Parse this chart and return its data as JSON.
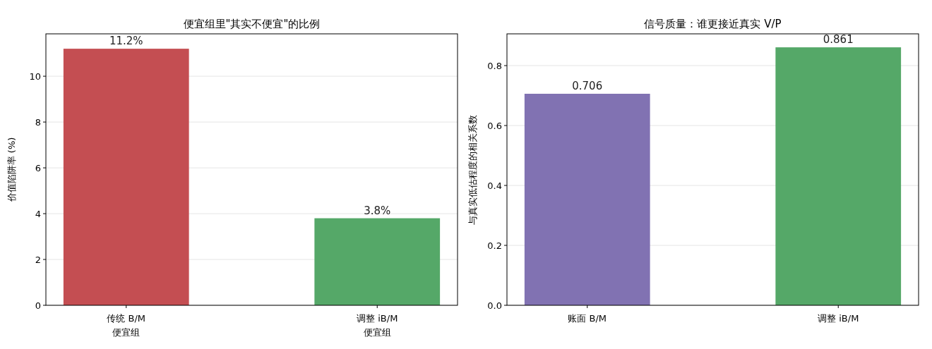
{
  "chart_data": [
    {
      "type": "bar",
      "title": "便宜组里\"其实不便宜\"的比例",
      "ylabel": "价值陷阱率 (%)",
      "categories": [
        "传统 B/M\n便宜组",
        "调整 iB/M\n便宜组"
      ],
      "values": [
        11.2,
        3.8
      ],
      "colors": [
        "#c44e52",
        "#55a868"
      ],
      "value_labels": [
        "11.2%",
        "3.8%"
      ],
      "ylim": [
        0,
        11.85
      ],
      "yticks": [
        0,
        2,
        4,
        6,
        8,
        10
      ],
      "grid": "y"
    },
    {
      "type": "bar",
      "title": "信号质量：谁更接近真实 V/P",
      "ylabel": "与真实低估程度的相关系数",
      "categories": [
        "账面 B/M",
        "调整 iB/M"
      ],
      "values": [
        0.706,
        0.861
      ],
      "colors": [
        "#8172b2",
        "#55a868"
      ],
      "data_labels": true,
      "ylim": [
        0,
        0.906
      ],
      "yticks": [
        {
          "value": 0,
          "label": "0.0"
        },
        0.2,
        0.4,
        0.6,
        0.8
      ],
      "grid": "y"
    }
  ]
}
